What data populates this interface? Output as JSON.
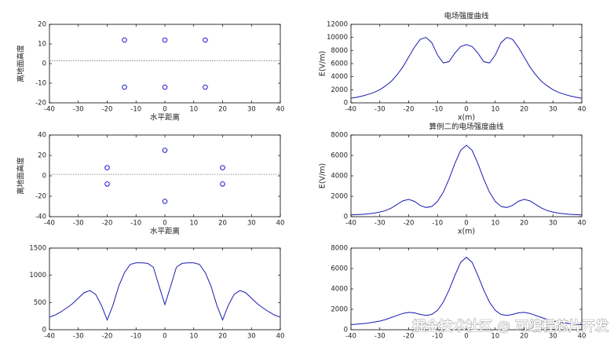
{
  "chart_data": [
    {
      "type": "scatter",
      "ylabel": "离地面高度",
      "xlabel": "水平距离",
      "color": "#0000cc",
      "x": [
        -14,
        0,
        14,
        -14,
        0,
        14
      ],
      "y": [
        12,
        12,
        12,
        -12,
        -12,
        -12
      ],
      "ground_level": 1.5,
      "xlim": [
        -40,
        40
      ],
      "xticks": [
        -40,
        -30,
        -20,
        -10,
        0,
        10,
        20,
        30,
        40
      ],
      "ylim": [
        -20,
        20
      ],
      "yticks": [
        -20,
        -10,
        0,
        10,
        20
      ]
    },
    {
      "type": "line",
      "title": "电场强度曲线",
      "xlabel": "x(m)",
      "ylabel": "E(V/m)",
      "color": "#1a1ab0",
      "x": [
        -40,
        -38,
        -36,
        -34,
        -32,
        -30,
        -28,
        -26,
        -24,
        -22,
        -20,
        -18,
        -16,
        -14,
        -12,
        -10,
        -8,
        -6,
        -4,
        -2,
        0,
        2,
        4,
        6,
        8,
        10,
        12,
        14,
        16,
        18,
        20,
        22,
        24,
        26,
        28,
        30,
        32,
        34,
        36,
        38,
        40
      ],
      "values": [
        700,
        850,
        1050,
        1300,
        1600,
        2000,
        2600,
        3300,
        4300,
        5500,
        7000,
        8500,
        9700,
        10000,
        9200,
        7300,
        6100,
        6300,
        7600,
        8600,
        8900,
        8600,
        7600,
        6300,
        6100,
        7300,
        9200,
        10000,
        9700,
        8500,
        7000,
        5500,
        4300,
        3300,
        2600,
        2000,
        1600,
        1300,
        1050,
        850,
        700
      ],
      "xlim": [
        -40,
        40
      ],
      "xticks": [
        -40,
        -30,
        -20,
        -10,
        0,
        10,
        20,
        30,
        40
      ],
      "ylim": [
        0,
        12000
      ],
      "yticks": [
        0,
        2000,
        4000,
        6000,
        8000,
        10000,
        12000
      ]
    },
    {
      "type": "scatter",
      "ylabel": "离地面高度",
      "xlabel": "水平距离",
      "color": "#0000cc",
      "x": [
        0,
        -20,
        20,
        -20,
        20,
        0
      ],
      "y": [
        25,
        8,
        8,
        -8,
        -8,
        -25
      ],
      "ground_level": 1.5,
      "xlim": [
        -40,
        40
      ],
      "xticks": [
        -40,
        -30,
        -20,
        -10,
        0,
        10,
        20,
        30,
        40
      ],
      "ylim": [
        -40,
        40
      ],
      "yticks": [
        -40,
        -20,
        0,
        20,
        40
      ]
    },
    {
      "type": "line",
      "title": "算例二的电场强度曲线",
      "xlabel": "x(m)",
      "ylabel": "E(V/m)",
      "color": "#1a1ab0",
      "x": [
        -40,
        -38,
        -36,
        -34,
        -32,
        -30,
        -28,
        -26,
        -24,
        -22,
        -20,
        -18,
        -16,
        -14,
        -12,
        -10,
        -8,
        -6,
        -4,
        -2,
        0,
        2,
        4,
        6,
        8,
        10,
        12,
        14,
        16,
        18,
        20,
        22,
        24,
        26,
        28,
        30,
        32,
        34,
        36,
        38,
        40
      ],
      "values": [
        170,
        200,
        230,
        280,
        350,
        450,
        600,
        850,
        1200,
        1550,
        1700,
        1500,
        1100,
        900,
        1000,
        1500,
        2400,
        3700,
        5200,
        6500,
        7000,
        6500,
        5200,
        3700,
        2400,
        1500,
        1000,
        900,
        1100,
        1500,
        1700,
        1550,
        1200,
        850,
        600,
        450,
        350,
        280,
        230,
        200,
        170
      ],
      "xlim": [
        -40,
        40
      ],
      "xticks": [
        -40,
        -30,
        -20,
        -10,
        0,
        10,
        20,
        30,
        40
      ],
      "ylim": [
        0,
        8000
      ],
      "yticks": [
        0,
        2000,
        4000,
        6000,
        8000
      ]
    },
    {
      "type": "line",
      "color": "#1a1ab0",
      "x": [
        -40,
        -38,
        -36,
        -34,
        -32,
        -30,
        -28,
        -26,
        -24,
        -22,
        -20,
        -18,
        -16,
        -14,
        -12,
        -10,
        -8,
        -6,
        -4,
        -2,
        0,
        2,
        4,
        6,
        8,
        10,
        12,
        14,
        16,
        18,
        20,
        22,
        24,
        26,
        28,
        30,
        32,
        34,
        36,
        38,
        40
      ],
      "values": [
        230,
        270,
        330,
        400,
        480,
        580,
        680,
        720,
        650,
        450,
        180,
        450,
        800,
        1050,
        1200,
        1230,
        1230,
        1220,
        1150,
        800,
        460,
        800,
        1150,
        1220,
        1230,
        1230,
        1200,
        1050,
        800,
        450,
        180,
        450,
        650,
        720,
        680,
        580,
        480,
        400,
        330,
        270,
        230
      ],
      "xlim": [
        -40,
        40
      ],
      "xticks": [
        -40,
        -30,
        -20,
        -10,
        0,
        10,
        20,
        30,
        40
      ],
      "ylim": [
        0,
        1500
      ],
      "yticks": [
        0,
        500,
        1000,
        1500
      ]
    },
    {
      "type": "line",
      "color": "#1a1ab0",
      "x": [
        -40,
        -38,
        -36,
        -34,
        -32,
        -30,
        -28,
        -26,
        -24,
        -22,
        -20,
        -18,
        -16,
        -14,
        -12,
        -10,
        -8,
        -6,
        -4,
        -2,
        0,
        2,
        4,
        6,
        8,
        10,
        12,
        14,
        16,
        18,
        20,
        22,
        24,
        26,
        28,
        30,
        32,
        34,
        36,
        38,
        40
      ],
      "values": [
        500,
        550,
        600,
        650,
        750,
        850,
        1000,
        1200,
        1400,
        1600,
        1700,
        1650,
        1500,
        1400,
        1500,
        1900,
        2700,
        3900,
        5300,
        6600,
        7100,
        6600,
        5300,
        3900,
        2700,
        1900,
        1500,
        1400,
        1500,
        1650,
        1700,
        1600,
        1400,
        1200,
        1000,
        850,
        750,
        650,
        600,
        550,
        500
      ],
      "xlim": [
        -40,
        40
      ],
      "xticks": [
        -40,
        -30,
        -20,
        -10,
        0,
        10,
        20,
        30,
        40
      ],
      "ylim": [
        0,
        8000
      ],
      "yticks": [
        0,
        2000,
        4000,
        6000,
        8000
      ]
    }
  ],
  "watermark": "掘金技术社区 @ 可编程芯片开发"
}
